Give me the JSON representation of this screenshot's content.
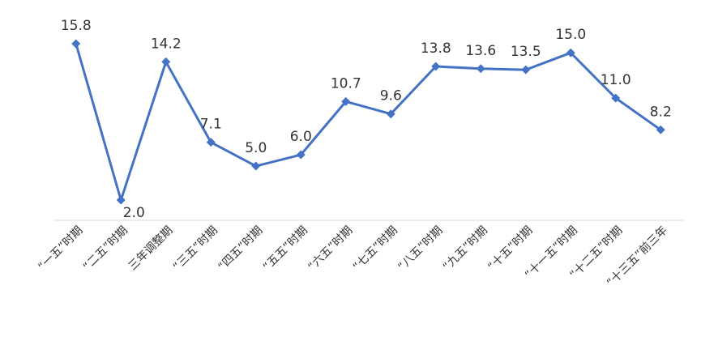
{
  "chart_data": {
    "type": "line",
    "categories": [
      "“一五”时期",
      "“二五”时期",
      "三年调整期",
      "“三五”时期",
      "“四五”时期",
      "“五五”时期",
      "“六五”时期",
      "“七五”时期",
      "“八五”时期",
      "“九五”时期",
      "“十五”时期",
      "“十一五”时期",
      "“十二五”时期",
      "“十三五”前三年"
    ],
    "values": [
      15.8,
      2.0,
      14.2,
      7.1,
      5.0,
      6.0,
      10.7,
      9.6,
      13.8,
      13.6,
      13.5,
      15.0,
      11.0,
      8.2
    ],
    "value_labels": [
      "15.8",
      "2.0",
      "14.2",
      "7.1",
      "5.0",
      "6.0",
      "10.7",
      "9.6",
      "13.8",
      "13.6",
      "13.5",
      "15.0",
      "11.0",
      "8.2"
    ],
    "color": "#4472c4"
  }
}
